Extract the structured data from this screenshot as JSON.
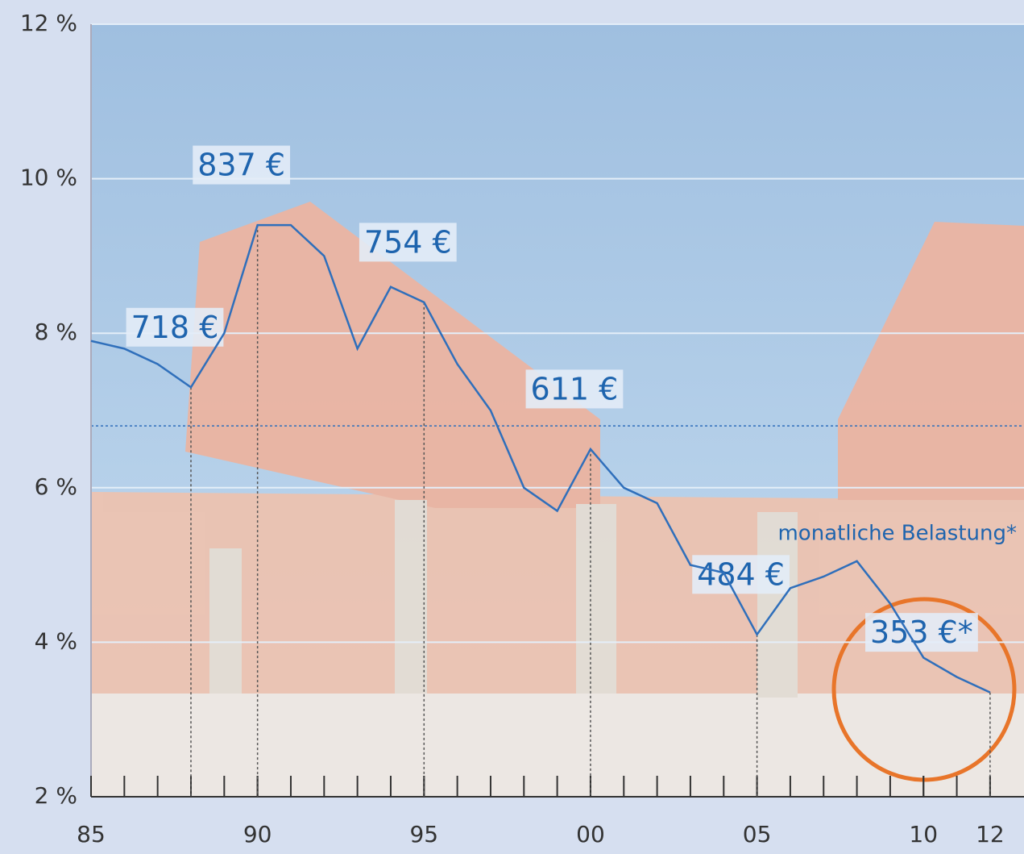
{
  "chart_data": {
    "type": "line",
    "x": [
      1985,
      1986,
      1987,
      1988,
      1989,
      1990,
      1991,
      1992,
      1993,
      1994,
      1995,
      1996,
      1997,
      1998,
      1999,
      2000,
      2001,
      2002,
      2003,
      2004,
      2005,
      2006,
      2007,
      2008,
      2009,
      2010,
      2011,
      2012
    ],
    "series": [
      {
        "color": "#2f6fbb",
        "values": [
          7.9,
          7.8,
          7.6,
          7.3,
          8.0,
          9.4,
          9.4,
          9.0,
          7.8,
          8.6,
          8.4,
          7.6,
          7.0,
          6.0,
          5.7,
          6.5,
          6.0,
          5.8,
          5.0,
          4.9,
          4.1,
          4.7,
          4.85,
          5.05,
          4.5,
          3.8,
          3.55,
          3.35
        ]
      }
    ],
    "xlim": [
      1985,
      2013
    ],
    "xticks": [
      {
        "value": 1985,
        "label": "85"
      },
      {
        "value": 1990,
        "label": "90"
      },
      {
        "value": 1995,
        "label": "95"
      },
      {
        "value": 2000,
        "label": "00"
      },
      {
        "value": 2005,
        "label": "05"
      },
      {
        "value": 2010,
        "label": "10"
      },
      {
        "value": 2012,
        "label": "12"
      }
    ],
    "minor_xticks": [
      1986,
      1987,
      1988,
      1989,
      1990,
      1991,
      1992,
      1993,
      1994,
      1995,
      1996,
      1997,
      1998,
      1999,
      2000,
      2001,
      2002,
      2003,
      2004,
      2005,
      2006,
      2007,
      2008,
      2009,
      2010,
      2011,
      2012
    ],
    "ylim": [
      2,
      12
    ],
    "yticks": [
      {
        "value": 2,
        "label": "2 %"
      },
      {
        "value": 4,
        "label": "4 %"
      },
      {
        "value": 6,
        "label": "6 %"
      },
      {
        "value": 8,
        "label": "8 %"
      },
      {
        "value": 10,
        "label": "10 %"
      },
      {
        "value": 12,
        "label": "12 %"
      }
    ],
    "grid": true,
    "average_line": 6.8,
    "payment_labels": [
      {
        "x": 1988,
        "label": "718 €"
      },
      {
        "x": 1990,
        "label": "837 €"
      },
      {
        "x": 1995,
        "label": "754 €"
      },
      {
        "x": 2000,
        "label": "611 €"
      },
      {
        "x": 2005,
        "label": "484 €"
      },
      {
        "x": 2012,
        "label": "353 €*"
      }
    ],
    "annotation": "monatliche Belastung*"
  }
}
